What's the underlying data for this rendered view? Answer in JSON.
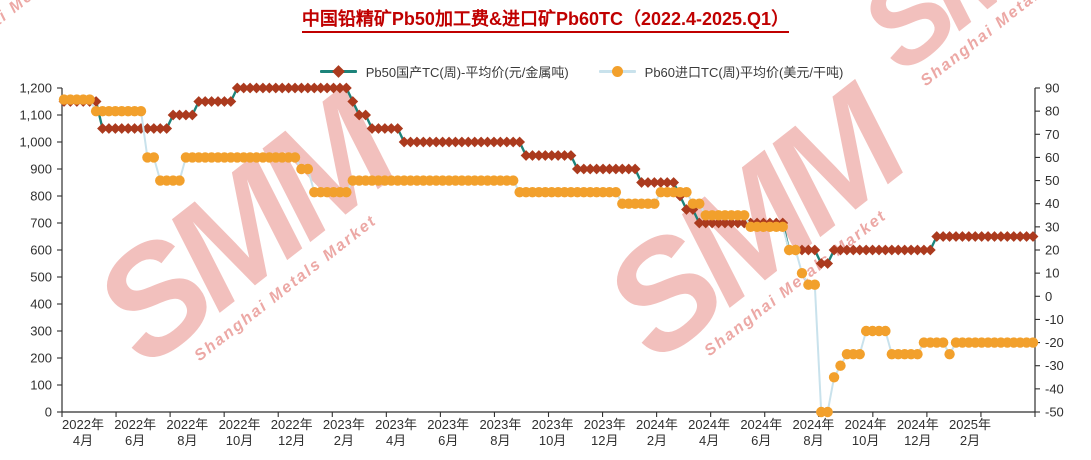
{
  "title": "中国铅精矿Pb50加工费&进口矿Pb60TC（2022.4-2025.Q1）",
  "title_color": "#c00000",
  "watermark": {
    "logo": "SMM",
    "subtext": "Shanghai Metals Market"
  },
  "legend": [
    {
      "label": "Pb50国产TC(周)-平均价(元/金属吨)",
      "marker": "diamond",
      "marker_color": "#ab3a1e",
      "line_color": "#1d837a"
    },
    {
      "label": "Pb60进口TC(周)平均价(美元/干吨)",
      "marker": "circle",
      "marker_color": "#f2a02c",
      "line_color": "#c9e2ec"
    }
  ],
  "chart_data": {
    "type": "line",
    "title": "中国铅精矿Pb50加工费&进口矿Pb60TC（2022.4-2025.Q1）",
    "x_unit": "weekly observations, Apr 2022 – Mar 2025",
    "grid": false,
    "legend_position": "top",
    "x_tick_labels": [
      {
        "year": "2022年",
        "month": "4月"
      },
      {
        "year": "2022年",
        "month": "6月"
      },
      {
        "year": "2022年",
        "month": "8月"
      },
      {
        "year": "2022年",
        "month": "10月"
      },
      {
        "year": "2022年",
        "month": "12月"
      },
      {
        "year": "2023年",
        "month": "2月"
      },
      {
        "year": "2023年",
        "month": "4月"
      },
      {
        "year": "2023年",
        "month": "6月"
      },
      {
        "year": "2023年",
        "month": "8月"
      },
      {
        "year": "2023年",
        "month": "10月"
      },
      {
        "year": "2023年",
        "month": "12月"
      },
      {
        "year": "2024年",
        "month": "2月"
      },
      {
        "year": "2024年",
        "month": "4月"
      },
      {
        "year": "2024年",
        "month": "6月"
      },
      {
        "year": "2024年",
        "month": "8月"
      },
      {
        "year": "2024年",
        "month": "10月"
      },
      {
        "year": "2024年",
        "month": "12月"
      },
      {
        "year": "2025年",
        "month": "2月"
      }
    ],
    "left_axis": {
      "min": 0,
      "max": 1200,
      "step": 100,
      "tick_labels": [
        "1,200",
        "1,100",
        "1,000",
        "900",
        "800",
        "700",
        "600",
        "500",
        "400",
        "300",
        "200",
        "100",
        "0"
      ]
    },
    "right_axis": {
      "min": -50,
      "max": 90,
      "step": 10,
      "tick_labels": [
        "90",
        "80",
        "70",
        "60",
        "50",
        "40",
        "30",
        "20",
        "10",
        "0",
        "-10",
        "-20",
        "-30",
        "-40",
        "-50"
      ]
    },
    "series": [
      {
        "name": "Pb50国产TC(周)-平均价(元/金属吨)",
        "axis": "left",
        "marker": "diamond",
        "values": [
          1150,
          1150,
          1150,
          1150,
          1150,
          1150,
          1050,
          1050,
          1050,
          1050,
          1050,
          1050,
          1050,
          1050,
          1050,
          1050,
          1050,
          1100,
          1100,
          1100,
          1100,
          1150,
          1150,
          1150,
          1150,
          1150,
          1150,
          1200,
          1200,
          1200,
          1200,
          1200,
          1200,
          1200,
          1200,
          1200,
          1200,
          1200,
          1200,
          1200,
          1200,
          1200,
          1200,
          1200,
          1200,
          1150,
          1100,
          1100,
          1050,
          1050,
          1050,
          1050,
          1050,
          1000,
          1000,
          1000,
          1000,
          1000,
          1000,
          1000,
          1000,
          1000,
          1000,
          1000,
          1000,
          1000,
          1000,
          1000,
          1000,
          1000,
          1000,
          1000,
          950,
          950,
          950,
          950,
          950,
          950,
          950,
          950,
          900,
          900,
          900,
          900,
          900,
          900,
          900,
          900,
          900,
          900,
          850,
          850,
          850,
          850,
          850,
          850,
          800,
          750,
          750,
          700,
          700,
          700,
          700,
          700,
          700,
          700,
          700,
          700,
          700,
          700,
          700,
          700,
          700,
          600,
          600,
          600,
          600,
          600,
          550,
          550,
          600,
          600,
          600,
          600,
          600,
          600,
          600,
          600,
          600,
          600,
          600,
          600,
          600,
          600,
          600,
          600,
          650,
          650,
          650,
          650,
          650,
          650,
          650,
          650,
          650,
          650,
          650,
          650,
          650,
          650,
          650,
          650
        ]
      },
      {
        "name": "Pb60进口TC(周)平均价(美元/干吨)",
        "axis": "right",
        "marker": "circle",
        "values": [
          85,
          85,
          85,
          85,
          85,
          80,
          80,
          80,
          80,
          80,
          80,
          80,
          80,
          60,
          60,
          50,
          50,
          50,
          50,
          60,
          60,
          60,
          60,
          60,
          60,
          60,
          60,
          60,
          60,
          60,
          60,
          60,
          60,
          60,
          60,
          60,
          60,
          55,
          55,
          45,
          45,
          45,
          45,
          45,
          45,
          50,
          50,
          50,
          50,
          50,
          50,
          50,
          50,
          50,
          50,
          50,
          50,
          50,
          50,
          50,
          50,
          50,
          50,
          50,
          50,
          50,
          50,
          50,
          50,
          50,
          50,
          45,
          45,
          45,
          45,
          45,
          45,
          45,
          45,
          45,
          45,
          45,
          45,
          45,
          45,
          45,
          45,
          40,
          40,
          40,
          40,
          40,
          40,
          45,
          45,
          45,
          45,
          45,
          40,
          40,
          35,
          35,
          35,
          35,
          35,
          35,
          35,
          30,
          30,
          30,
          30,
          30,
          30,
          20,
          20,
          10,
          5,
          5,
          -50,
          -50,
          -35,
          -30,
          -25,
          -25,
          -25,
          -15,
          -15,
          -15,
          -15,
          -25,
          -25,
          -25,
          -25,
          -25,
          -20,
          -20,
          -20,
          -20,
          -25,
          -20,
          -20,
          -20,
          -20,
          -20,
          -20,
          -20,
          -20,
          -20,
          -20,
          -20,
          -20,
          -20
        ]
      }
    ]
  }
}
